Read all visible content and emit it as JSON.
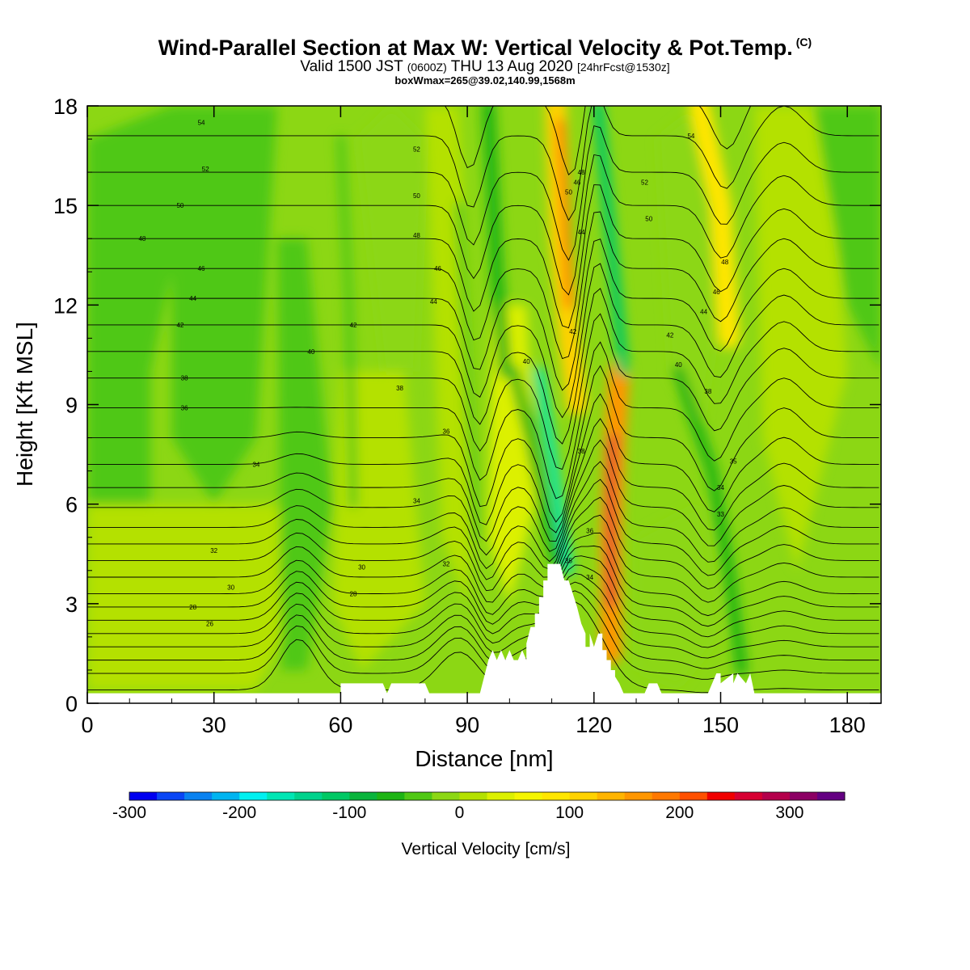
{
  "header": {
    "title_main": "Wind-Parallel Section at Max W: Vertical Velocity & Pot.Temp.",
    "title_c": "(C)",
    "valid_a": "Valid 1500 JST",
    "valid_b": "(0600Z)",
    "valid_c": "THU 13 Aug 2020",
    "valid_d": "[24hrFcst@1530z]",
    "box_info": "boxWmax=265@39.02,140.99,1568m"
  },
  "chart_data": {
    "type": "heatmap",
    "xlabel": "Distance [nm]",
    "ylabel": "Height [Kft MSL]",
    "xlim": [
      0,
      188
    ],
    "ylim": [
      0,
      18
    ],
    "xticks": [
      0,
      30,
      60,
      90,
      120,
      150,
      180
    ],
    "yticks": [
      0,
      3,
      6,
      9,
      12,
      15,
      18
    ],
    "colorbar": {
      "label": "Vertical Velocity [cm/s]",
      "ticks": [
        -300,
        -200,
        -100,
        0,
        100,
        200,
        300
      ],
      "min": -300,
      "max": 350,
      "step": 25,
      "colors": [
        "#0000f0",
        "#0a46f5",
        "#0a82f0",
        "#00b4f0",
        "#00f0f0",
        "#00e6b4",
        "#00d28c",
        "#00c864",
        "#0ab43c",
        "#1eb414",
        "#50c814",
        "#8cd714",
        "#b4e100",
        "#dcf000",
        "#f5f500",
        "#ffe600",
        "#ffd200",
        "#ffb400",
        "#ff9600",
        "#ff7800",
        "#ff5000",
        "#f00000",
        "#d70032",
        "#b4004b",
        "#8c0064",
        "#640082"
      ]
    },
    "updrafts": [
      {
        "x_km": 114,
        "h_kft": 16.0,
        "value_cm_s": 150
      },
      {
        "x_km": 124,
        "h_kft": 7.0,
        "value_cm_s": 265
      },
      {
        "x_km": 150,
        "h_kft": 16.0,
        "value_cm_s": 100
      }
    ],
    "downdrafts": [
      {
        "x_km": 112,
        "h_kft": 6.0,
        "value_cm_s": -180
      },
      {
        "x_km": 125,
        "h_kft": 15.0,
        "value_cm_s": -100
      },
      {
        "x_km": 95,
        "h_kft": 15.0,
        "value_cm_s": -75
      },
      {
        "x_km": 152,
        "h_kft": 5.0,
        "value_cm_s": -60
      }
    ],
    "theta_contour_labels": [
      {
        "x": 27,
        "h": 17.5,
        "t": "54"
      },
      {
        "x": 28,
        "h": 16.1,
        "t": "52"
      },
      {
        "x": 22,
        "h": 15.0,
        "t": "50"
      },
      {
        "x": 13,
        "h": 14.0,
        "t": "48"
      },
      {
        "x": 27,
        "h": 13.1,
        "t": "46"
      },
      {
        "x": 25,
        "h": 12.2,
        "t": "44"
      },
      {
        "x": 22,
        "h": 11.4,
        "t": "42"
      },
      {
        "x": 23,
        "h": 9.8,
        "t": "38"
      },
      {
        "x": 23,
        "h": 8.9,
        "t": "36"
      },
      {
        "x": 40,
        "h": 7.2,
        "t": "34"
      },
      {
        "x": 30,
        "h": 4.6,
        "t": "32"
      },
      {
        "x": 34,
        "h": 3.5,
        "t": "30"
      },
      {
        "x": 25,
        "h": 2.9,
        "t": "28"
      },
      {
        "x": 29,
        "h": 2.4,
        "t": "26"
      },
      {
        "x": 78,
        "h": 16.7,
        "t": "52"
      },
      {
        "x": 78,
        "h": 15.3,
        "t": "50"
      },
      {
        "x": 78,
        "h": 14.1,
        "t": "48"
      },
      {
        "x": 83,
        "h": 13.1,
        "t": "46"
      },
      {
        "x": 82,
        "h": 12.1,
        "t": "44"
      },
      {
        "x": 63,
        "h": 11.4,
        "t": "42"
      },
      {
        "x": 53,
        "h": 10.6,
        "t": "40"
      },
      {
        "x": 74,
        "h": 9.5,
        "t": "38"
      },
      {
        "x": 85,
        "h": 8.2,
        "t": "36"
      },
      {
        "x": 78,
        "h": 6.1,
        "t": "34"
      },
      {
        "x": 85,
        "h": 4.2,
        "t": "32"
      },
      {
        "x": 65,
        "h": 4.1,
        "t": "30"
      },
      {
        "x": 63,
        "h": 3.3,
        "t": "28"
      },
      {
        "x": 104,
        "h": 10.3,
        "t": "40"
      },
      {
        "x": 114,
        "h": 15.4,
        "t": "50"
      },
      {
        "x": 117,
        "h": 16.0,
        "t": "48"
      },
      {
        "x": 116,
        "h": 15.7,
        "t": "46"
      },
      {
        "x": 117,
        "h": 14.2,
        "t": "44"
      },
      {
        "x": 115,
        "h": 11.2,
        "t": "42"
      },
      {
        "x": 117,
        "h": 7.6,
        "t": "38"
      },
      {
        "x": 119,
        "h": 5.2,
        "t": "36"
      },
      {
        "x": 114,
        "h": 4.3,
        "t": "35"
      },
      {
        "x": 119,
        "h": 3.8,
        "t": "34"
      },
      {
        "x": 132,
        "h": 15.7,
        "t": "52"
      },
      {
        "x": 133,
        "h": 14.6,
        "t": "50"
      },
      {
        "x": 151,
        "h": 13.3,
        "t": "48"
      },
      {
        "x": 149,
        "h": 12.4,
        "t": "46"
      },
      {
        "x": 146,
        "h": 11.8,
        "t": "44"
      },
      {
        "x": 138,
        "h": 11.1,
        "t": "42"
      },
      {
        "x": 140,
        "h": 10.2,
        "t": "40"
      },
      {
        "x": 147,
        "h": 9.4,
        "t": "38"
      },
      {
        "x": 153,
        "h": 7.3,
        "t": "35"
      },
      {
        "x": 150,
        "h": 6.5,
        "t": "34"
      },
      {
        "x": 150,
        "h": 5.7,
        "t": "33"
      },
      {
        "x": 143,
        "h": 17.1,
        "t": "54"
      }
    ],
    "terrain_kft": [
      [
        0,
        0.3
      ],
      [
        10,
        0.3
      ],
      [
        20,
        0.3
      ],
      [
        30,
        0.3
      ],
      [
        40,
        0.3
      ],
      [
        47,
        0.3
      ],
      [
        50,
        0.3
      ],
      [
        60,
        0.3
      ],
      [
        60,
        0.6
      ],
      [
        70,
        0.6
      ],
      [
        71,
        0.3
      ],
      [
        72,
        0.6
      ],
      [
        78,
        0.6
      ],
      [
        80,
        0.6
      ],
      [
        81,
        0.3
      ],
      [
        89,
        0.3
      ],
      [
        93,
        0.3
      ],
      [
        94,
        0.8
      ],
      [
        95,
        1.3
      ],
      [
        96,
        1.6
      ],
      [
        97,
        1.3
      ],
      [
        98,
        1.6
      ],
      [
        99,
        1.3
      ],
      [
        100,
        1.6
      ],
      [
        101,
        1.3
      ],
      [
        102,
        1.3
      ],
      [
        103,
        1.6
      ],
      [
        104,
        1.3
      ],
      [
        104,
        1.8
      ],
      [
        105,
        2.3
      ],
      [
        106,
        2.3
      ],
      [
        106,
        2.7
      ],
      [
        107,
        2.7
      ],
      [
        107,
        3.2
      ],
      [
        108,
        3.2
      ],
      [
        108,
        3.7
      ],
      [
        109,
        3.7
      ],
      [
        109,
        4.2
      ],
      [
        112,
        4.2
      ],
      [
        113,
        3.7
      ],
      [
        114,
        3.7
      ],
      [
        115,
        3.3
      ],
      [
        116,
        2.9
      ],
      [
        117,
        2.4
      ],
      [
        118,
        2.1
      ],
      [
        118,
        1.7
      ],
      [
        119,
        1.7
      ],
      [
        119,
        2.1
      ],
      [
        120,
        1.7
      ],
      [
        121,
        2.1
      ],
      [
        122,
        2.1
      ],
      [
        122,
        1.6
      ],
      [
        123,
        1.6
      ],
      [
        123,
        1.3
      ],
      [
        124,
        1.3
      ],
      [
        124,
        1.0
      ],
      [
        125,
        1.0
      ],
      [
        125,
        0.8
      ],
      [
        126,
        0.6
      ],
      [
        127,
        0.3
      ],
      [
        132,
        0.3
      ],
      [
        133,
        0.6
      ],
      [
        135,
        0.6
      ],
      [
        136,
        0.3
      ],
      [
        147,
        0.3
      ],
      [
        148,
        0.6
      ],
      [
        149,
        0.9
      ],
      [
        150,
        0.9
      ],
      [
        150,
        0.6
      ],
      [
        153,
        0.9
      ],
      [
        153,
        0.6
      ],
      [
        154,
        0.9
      ],
      [
        156,
        0.6
      ],
      [
        157,
        0.9
      ],
      [
        158,
        0.3
      ],
      [
        160,
        0.3
      ],
      [
        170,
        0.3
      ],
      [
        180,
        0.3
      ],
      [
        188,
        0.3
      ]
    ]
  }
}
